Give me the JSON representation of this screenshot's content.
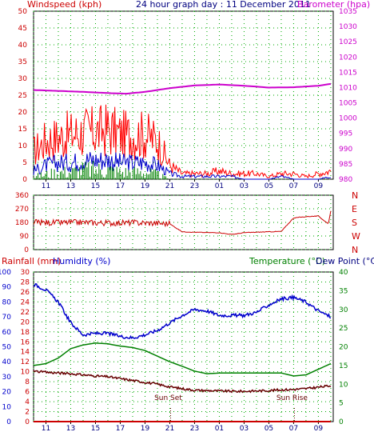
{
  "header": {
    "windspeed_label": "Windspeed (kph)",
    "title": "24 hour graph day : 11 December 2011",
    "barometer_label": "Barometer (hpa)"
  },
  "panel3_labels": {
    "rainfall": "Rainfall (mm)",
    "humidity": "Humidity (%)",
    "temperature": "Temperature (°C)",
    "dewpoint": "Dew Point (°C)"
  },
  "colors": {
    "windspeed": "#ff0000",
    "gust": "#0000cc",
    "avg": "#008000",
    "barometer": "#cc00cc",
    "direction": "#cc0000",
    "humidity": "#0000cc",
    "temperature": "#008000",
    "dewpoint": "#660000",
    "rain": "#cc0000",
    "grid": "#00aa00",
    "left_axis": "#cc0000",
    "right_axis_baro": "#cc00cc",
    "right_axis_temp": "#008000",
    "x_axis": "#000080"
  },
  "chart_data": [
    {
      "type": "area",
      "name": "wind-barometer",
      "x_ticks": [
        "11",
        "13",
        "15",
        "17",
        "19",
        "21",
        "23",
        "01",
        "03",
        "05",
        "07",
        "09"
      ],
      "y_left": {
        "min": 0,
        "max": 50,
        "step": 5,
        "label": "Windspeed (kph)"
      },
      "y_right": {
        "min": 980,
        "max": 1035,
        "step": 5,
        "label": "Barometer (hpa)"
      },
      "series": [
        {
          "name": "Windspeed (kph)",
          "axis": "left",
          "style": "spiky",
          "x": [
            10,
            11,
            12,
            13,
            14,
            15,
            16,
            17,
            18,
            19,
            20,
            21,
            22,
            23,
            24,
            25,
            26,
            27,
            28,
            29,
            30,
            31,
            32,
            33,
            34
          ],
          "y": [
            10,
            14,
            15,
            16,
            17,
            17,
            18,
            16,
            16,
            16,
            14,
            5,
            2,
            2,
            2,
            3,
            2,
            2,
            2,
            1,
            2,
            2,
            1,
            2,
            3
          ]
        },
        {
          "axis": "left",
          "style": "spiky",
          "x": [
            10,
            11,
            12,
            13,
            14,
            15,
            16,
            17,
            18,
            19,
            20,
            21,
            22,
            23,
            24,
            25,
            26,
            27,
            28,
            29,
            30,
            31,
            32,
            33,
            34
          ],
          "y": [
            3,
            5,
            6,
            6,
            7,
            7,
            7,
            6,
            6,
            6,
            5,
            2,
            1,
            1,
            1,
            1,
            1,
            0,
            0,
            0,
            1,
            0,
            0,
            0,
            1
          ]
        },
        {
          "axis": "left",
          "style": "bars",
          "x": [
            10,
            11,
            12,
            13,
            14,
            15,
            16,
            17,
            18,
            19,
            20,
            21,
            22,
            23,
            24,
            25,
            26,
            27,
            28,
            29,
            30,
            31,
            32,
            33,
            34
          ],
          "y": [
            1,
            2,
            3,
            3,
            4,
            4,
            4,
            3,
            3,
            3,
            2,
            0,
            0,
            0,
            0,
            0,
            0,
            0,
            0,
            0,
            0,
            0,
            0,
            0,
            0
          ]
        },
        {
          "name": "Barometer (hpa)",
          "axis": "right",
          "style": "line",
          "x": [
            10,
            12,
            14,
            16,
            17.5,
            19,
            21,
            23,
            25,
            27,
            29,
            31,
            33,
            34
          ],
          "y": [
            1009.2,
            1008.9,
            1008.6,
            1008.2,
            1008.0,
            1008.6,
            1009.8,
            1010.7,
            1011.0,
            1010.6,
            1010.0,
            1010.1,
            1010.6,
            1011.2
          ]
        }
      ]
    },
    {
      "type": "line",
      "name": "wind-direction",
      "x_ticks": [
        "11",
        "13",
        "15",
        "17",
        "19",
        "21",
        "23",
        "01",
        "03",
        "05",
        "07",
        "09"
      ],
      "y_left": {
        "min": 0,
        "max": 360,
        "ticks": [
          0,
          90,
          180,
          270,
          360
        ]
      },
      "y_right_labels": [
        "N",
        "W",
        "S",
        "E",
        "N"
      ],
      "series": [
        {
          "name": "Direction",
          "style": "noisy",
          "x": [
            10,
            12,
            14,
            16,
            18,
            20,
            21,
            22,
            23,
            24,
            25,
            26,
            27,
            28,
            29,
            30,
            31,
            32,
            33,
            33.8,
            34
          ],
          "y": [
            180,
            178,
            180,
            176,
            178,
            175,
            170,
            118,
            115,
            113,
            112,
            100,
            112,
            115,
            118,
            120,
            210,
            218,
            222,
            170,
            255
          ]
        }
      ]
    },
    {
      "type": "line",
      "name": "temp-humidity-rain",
      "x_ticks": [
        "11",
        "13",
        "15",
        "17",
        "19",
        "21",
        "23",
        "01",
        "03",
        "05",
        "07",
        "09"
      ],
      "y_rain": {
        "min": 0,
        "max": 30,
        "step": 2,
        "label": "Rainfall (mm)"
      },
      "y_humidity": {
        "min": 0,
        "max": 100,
        "step": 10,
        "label": "Humidity (%)"
      },
      "y_temp": {
        "min": 0,
        "max": 40,
        "step": 5,
        "label": "Temperature (°C)"
      },
      "annotations": [
        {
          "text": "Sun Set",
          "x": 21
        },
        {
          "text": "Sun Rise",
          "x": 31
        }
      ],
      "series": [
        {
          "name": "Humidity (%)",
          "axis": "humidity",
          "style": "noisy",
          "x": [
            10,
            11,
            12,
            13,
            14,
            15,
            16,
            17,
            18,
            19,
            20,
            21,
            22,
            23,
            24,
            25,
            26,
            27,
            28,
            29,
            30,
            31,
            32,
            33,
            34
          ],
          "y": [
            92,
            88,
            80,
            66,
            58,
            59,
            59,
            57,
            56,
            58,
            61,
            66,
            71,
            75,
            74,
            71,
            71,
            71,
            73,
            78,
            82,
            83,
            80,
            74,
            70
          ]
        },
        {
          "name": "Temperature (°C)",
          "axis": "temp",
          "style": "smooth",
          "x": [
            10,
            11,
            12,
            13,
            14,
            15,
            16,
            17,
            18,
            19,
            20,
            21,
            22,
            23,
            24,
            25,
            26,
            27,
            28,
            29,
            30,
            31,
            32,
            33,
            34
          ],
          "y": [
            15,
            15.5,
            17,
            19.5,
            20.5,
            21,
            20.8,
            20.2,
            19.8,
            19,
            17.5,
            16,
            14.8,
            13.5,
            12.8,
            13,
            13,
            13,
            13,
            13,
            13,
            12.2,
            12.5,
            14,
            15.5
          ]
        },
        {
          "name": "Dew Point (°C)",
          "axis": "temp",
          "style": "noisy",
          "x": [
            10,
            11,
            12,
            13,
            14,
            15,
            16,
            17,
            18,
            19,
            20,
            21,
            22,
            23,
            24,
            25,
            26,
            27,
            28,
            29,
            30,
            31,
            32,
            33,
            34
          ],
          "y": [
            13.5,
            13.2,
            13,
            12.8,
            12.5,
            12.2,
            12.0,
            11.5,
            11.0,
            10.5,
            10.0,
            9.3,
            8.8,
            8.4,
            8.3,
            8.2,
            8.1,
            8.1,
            8.2,
            8.3,
            8.5,
            8.6,
            8.8,
            9.2,
            9.6
          ]
        },
        {
          "name": "Rainfall (mm)",
          "axis": "rain",
          "style": "line",
          "x": [
            10,
            34
          ],
          "y": [
            0,
            0
          ]
        }
      ]
    }
  ]
}
